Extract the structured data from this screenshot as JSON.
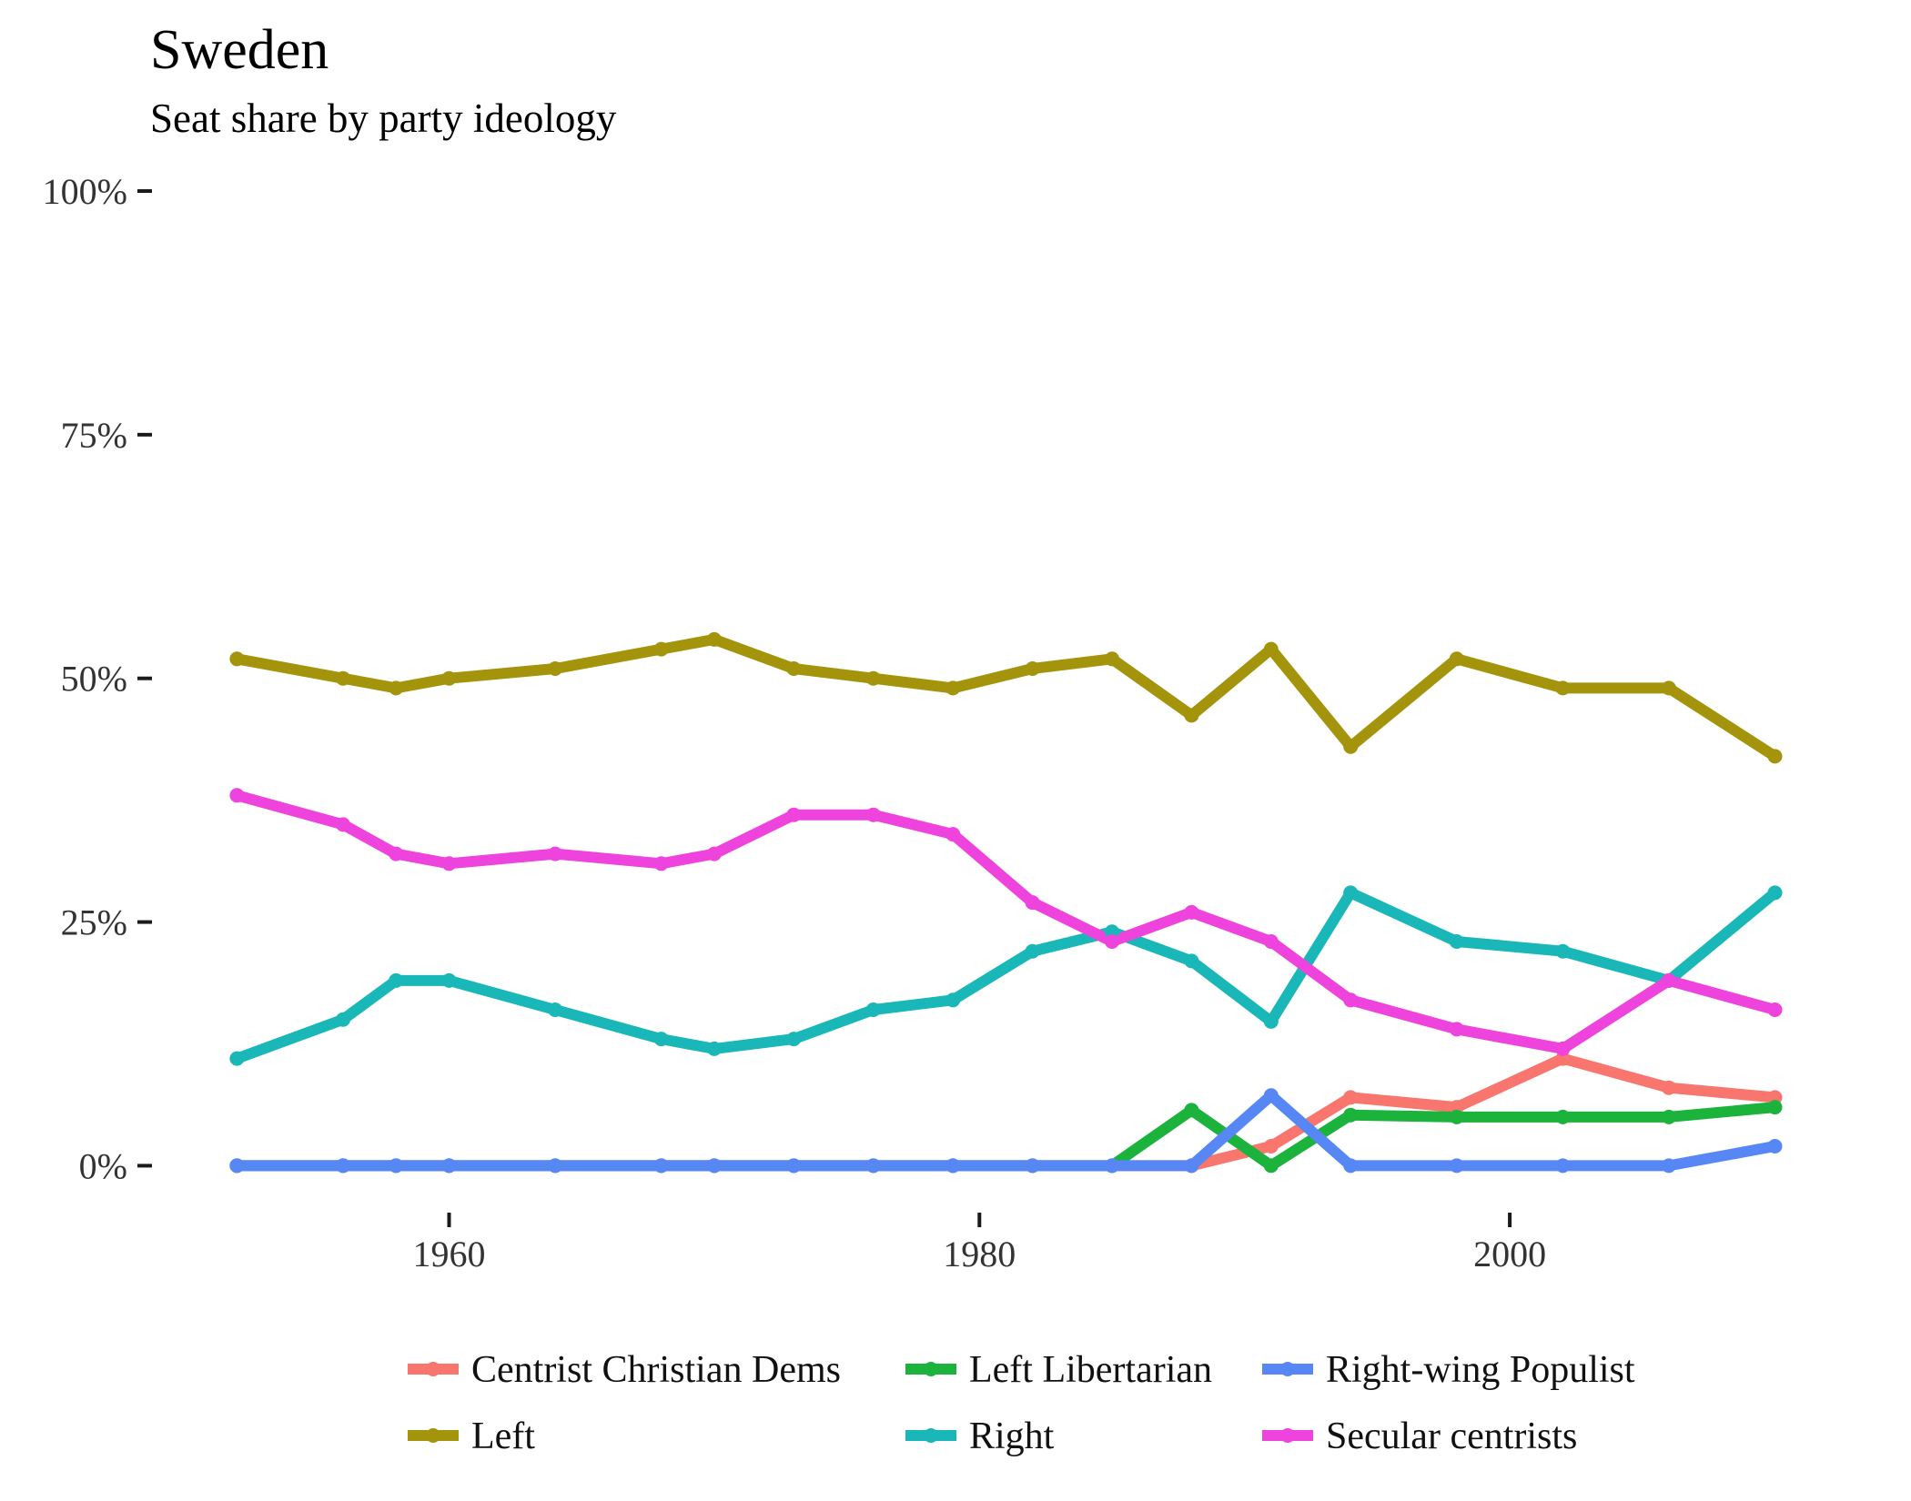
{
  "chart_data": {
    "type": "line",
    "title": "Sweden",
    "subtitle": "Seat share by party ideology",
    "xlabel": "",
    "ylabel": "",
    "xlim": [
      1951.3,
      2011.7
    ],
    "ylim": [
      -0.05,
      1.0
    ],
    "x_ticks": [
      1960,
      1980,
      2000
    ],
    "x_tick_labels": [
      "1960",
      "1980",
      "2000"
    ],
    "y_ticks": [
      0,
      0.25,
      0.5,
      0.75,
      1.0
    ],
    "y_tick_labels": [
      "0%",
      "25%",
      "50%",
      "75%",
      "100%"
    ],
    "grid": false,
    "legend_position": "bottom",
    "x": [
      1952,
      1956,
      1958,
      1960,
      1964,
      1968,
      1970,
      1973,
      1976,
      1979,
      1982,
      1985,
      1988,
      1991,
      1994,
      1998,
      2002,
      2006,
      2010
    ],
    "series": [
      {
        "name": "Centrist Christian Dems",
        "color": "#F8766D",
        "values": [
          0,
          0,
          0,
          0,
          0,
          0,
          0,
          0,
          0,
          0,
          0,
          0,
          0,
          0.02,
          0.07,
          0.06,
          0.11,
          0.08,
          0.07
        ]
      },
      {
        "name": "Left Libertarian",
        "color": "#1BB33C",
        "values": [
          0,
          0,
          0,
          0,
          0,
          0,
          0,
          0,
          0,
          0,
          0,
          0,
          0.057,
          0,
          0.052,
          0.05,
          0.05,
          0.05,
          0.06
        ]
      },
      {
        "name": "Right-wing Populist",
        "color": "#5687F5",
        "values": [
          0,
          0,
          0,
          0,
          0,
          0,
          0,
          0,
          0,
          0,
          0,
          0,
          0,
          0.072,
          0,
          0,
          0,
          0,
          0.02
        ]
      },
      {
        "name": "Left",
        "color": "#A3940C",
        "values": [
          0.52,
          0.5,
          0.49,
          0.5,
          0.51,
          0.53,
          0.54,
          0.51,
          0.5,
          0.49,
          0.51,
          0.52,
          0.462,
          0.53,
          0.43,
          0.52,
          0.49,
          0.49,
          0.42
        ]
      },
      {
        "name": "Right",
        "color": "#1AB7B9",
        "values": [
          0.11,
          0.15,
          0.19,
          0.19,
          0.16,
          0.13,
          0.12,
          0.13,
          0.16,
          0.17,
          0.22,
          0.24,
          0.21,
          0.148,
          0.28,
          0.23,
          0.22,
          0.19,
          0.28
        ]
      },
      {
        "name": "Secular centrists",
        "color": "#EE43DC",
        "values": [
          0.38,
          0.35,
          0.32,
          0.31,
          0.32,
          0.31,
          0.32,
          0.36,
          0.36,
          0.34,
          0.27,
          0.23,
          0.26,
          0.23,
          0.17,
          0.14,
          0.12,
          0.19,
          0.16
        ]
      }
    ],
    "legend_order": [
      "Centrist Christian Dems",
      "Left Libertarian",
      "Right-wing Populist",
      "Left",
      "Right",
      "Secular centrists"
    ]
  }
}
